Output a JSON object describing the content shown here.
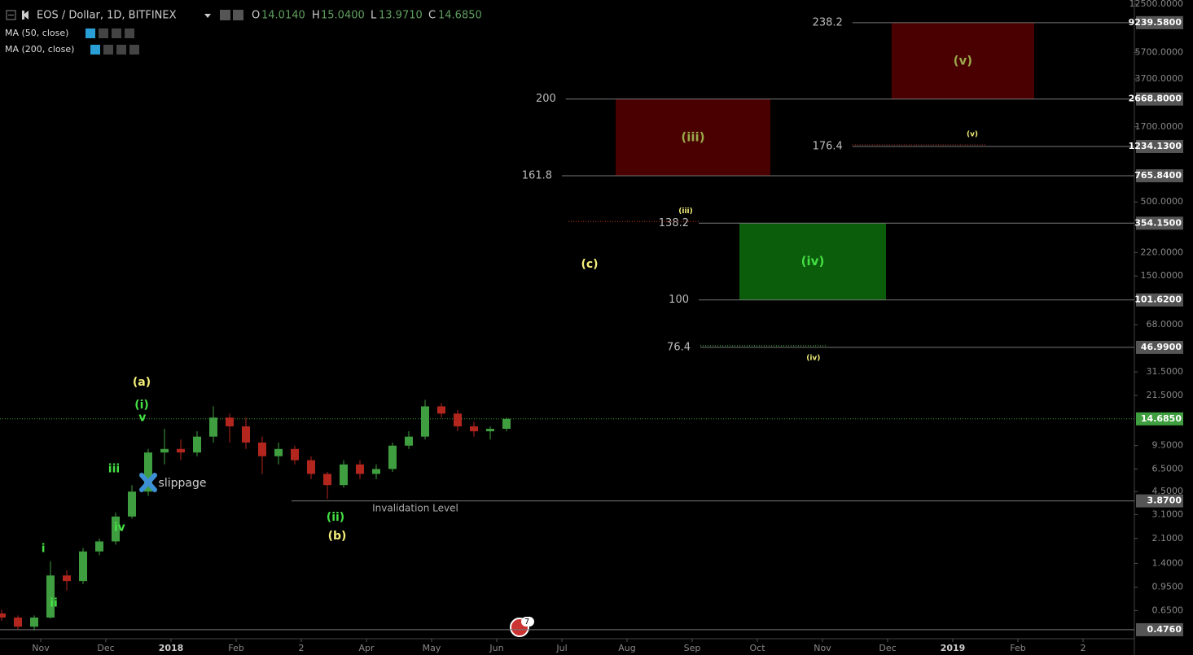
{
  "header": {
    "symbol": "EOS / Dollar, 1D, BITFINEX",
    "ohlc": [
      {
        "key": "O",
        "value": {
          "value": 14.014,
          "label": "14.0140"
        }
      },
      {
        "key": "H",
        "value": {
          "value": 15.04,
          "label": "15.0400"
        }
      },
      {
        "key": "L",
        "value": {
          "value": 13.971,
          "label": "13.9710"
        }
      },
      {
        "key": "C",
        "value": {
          "value": 14.685,
          "label": "14.6850"
        }
      }
    ],
    "indicators": [
      "MA (50, close)",
      "MA (200, close)"
    ]
  },
  "badge": 7,
  "chart_data": {
    "type": "candlestick",
    "log_scale": true,
    "up_color": "#3f9e3f",
    "down_color": "#b3261e",
    "x": [
      -0.6,
      -0.35,
      -0.1,
      0.15,
      0.4,
      0.65,
      0.9,
      1.15,
      1.4,
      1.65,
      1.9,
      2.15,
      2.4,
      2.65,
      2.9,
      3.15,
      3.4,
      3.65,
      3.9,
      4.15,
      4.4,
      4.65,
      4.9,
      5.15,
      5.4,
      5.65,
      5.9,
      6.15,
      6.4,
      6.65,
      6.9,
      7.15
    ],
    "open": [
      0.62,
      0.58,
      0.5,
      0.58,
      1.15,
      1.05,
      1.7,
      2.0,
      3.0,
      4.5,
      8.5,
      9.0,
      8.5,
      11,
      15,
      13,
      10,
      8,
      9,
      7.5,
      6,
      5,
      7,
      6,
      6.5,
      9.5,
      11,
      18,
      16,
      13,
      12,
      12.5
    ],
    "high": [
      0.66,
      0.6,
      0.6,
      1.45,
      1.25,
      1.8,
      2.1,
      3.2,
      5.0,
      9.0,
      12.5,
      10.5,
      12,
      18,
      16,
      15,
      11,
      10,
      9.5,
      8,
      6.2,
      7.5,
      7.5,
      7,
      10,
      12,
      20,
      19,
      17,
      14,
      13,
      15
    ],
    "low": [
      0.55,
      0.48,
      0.47,
      0.57,
      0.9,
      1.0,
      1.6,
      1.9,
      2.9,
      4.2,
      7.0,
      7.5,
      8,
      10,
      10,
      9,
      6,
      7,
      7,
      5.5,
      4,
      4.8,
      5.5,
      5.5,
      6.2,
      9,
      10.5,
      15,
      12,
      11,
      10.5,
      12
    ],
    "close": [
      0.58,
      0.5,
      0.58,
      1.15,
      1.05,
      1.7,
      2.0,
      3.0,
      4.5,
      8.5,
      9.0,
      8.5,
      11,
      15,
      13,
      10,
      8,
      9,
      7.5,
      6,
      5,
      7,
      6,
      6.5,
      9.5,
      11,
      18,
      16,
      13,
      12,
      12.5,
      14.685
    ],
    "xlim": [
      -0.625,
      16.7875
    ],
    "xticks": [
      {
        "value": 0,
        "label": "Nov"
      },
      {
        "value": 1,
        "label": "Dec"
      },
      {
        "value": 2,
        "label": "2018"
      },
      {
        "value": 3,
        "label": "Feb"
      },
      {
        "value": 4,
        "label": "2"
      },
      {
        "value": 5,
        "label": "Apr"
      },
      {
        "value": 6,
        "label": "May"
      },
      {
        "value": 7,
        "label": "Jun"
      },
      {
        "value": 8,
        "label": "Jul"
      },
      {
        "value": 9,
        "label": "Aug"
      },
      {
        "value": 10,
        "label": "Sep"
      },
      {
        "value": 11,
        "label": "Oct"
      },
      {
        "value": 12,
        "label": "Nov"
      },
      {
        "value": 13,
        "label": "Dec"
      },
      {
        "value": 14,
        "label": "2019"
      },
      {
        "value": 15,
        "label": "Feb"
      },
      {
        "value": 16,
        "label": "2"
      }
    ],
    "ylim": [
      0.411,
      13360
    ],
    "yticks": [
      {
        "value": 12500,
        "label": "12500.0000"
      },
      {
        "value": 5700,
        "label": "5700.0000"
      },
      {
        "value": 3700,
        "label": "3700.0000"
      },
      {
        "value": 1700,
        "label": "1700.0000"
      },
      {
        "value": 500,
        "label": "500.0000"
      },
      {
        "value": 220,
        "label": "220.0000"
      },
      {
        "value": 150,
        "label": "150.0000"
      },
      {
        "value": 68,
        "label": "68.0000"
      },
      {
        "value": 31.5,
        "label": "31.5000"
      },
      {
        "value": 21.5,
        "label": "21.5000"
      },
      {
        "value": 9.5,
        "label": "9.5000"
      },
      {
        "value": 6.5,
        "label": "6.5000"
      },
      {
        "value": 4.5,
        "label": "4.5000"
      },
      {
        "value": 3.1,
        "label": "3.1000"
      },
      {
        "value": 2.1,
        "label": "2.1000"
      },
      {
        "value": 1.4,
        "label": "1.4000"
      },
      {
        "value": 0.95,
        "label": "0.9500"
      },
      {
        "value": 0.65,
        "label": "0.6500"
      }
    ],
    "last_price": {
      "value": 14.685,
      "label": "14.6850"
    },
    "levels": [
      {
        "value": 9239.58,
        "label": "9239.5800",
        "ratio": 238.2,
        "from": 12.46
      },
      {
        "value": 2668.8,
        "label": "2668.8000",
        "ratio": 200,
        "from": 8.06
      },
      {
        "value": 1234.13,
        "label": "1234.1300",
        "ratio": 176.4,
        "from": 12.46
      },
      {
        "value": 765.84,
        "label": "765.8400",
        "ratio": 161.8,
        "from": 8.0
      },
      {
        "value": 354.15,
        "label": "354.1500",
        "ratio": 138.2,
        "from": 10.1
      },
      {
        "value": 101.62,
        "label": "101.6200",
        "ratio": 100,
        "from": 10.1
      },
      {
        "value": 46.99,
        "label": "46.9900",
        "ratio": 76.4,
        "from": 10.125
      },
      {
        "value": 3.87,
        "label": "3.8700",
        "ratio": null,
        "from": 3.85
      },
      {
        "value": 0.476,
        "label": "0.4760",
        "ratio": null,
        "from": -0.625
      }
    ],
    "boxes": [
      {
        "label": "(iii)",
        "low": 765.84,
        "high": 2668.8,
        "x": [
          8.825,
          11.2
        ],
        "color": "#4a0000",
        "text_color": "#9aa84a"
      },
      {
        "label": "(v)",
        "low": 2668.8,
        "high": 9239.58,
        "x": [
          13.06,
          15.25
        ],
        "color": "#4a0000",
        "text_color": "#9aa84a"
      },
      {
        "label": "(iv)",
        "low": 101.62,
        "high": 354.15,
        "x": [
          10.725,
          12.975
        ],
        "color": "#0b5c0b",
        "text_color": "#44e044"
      }
    ],
    "projections": [
      {
        "label": "(iii)",
        "value": 354.15,
        "x": [
          8.1,
          10.1
        ],
        "color": "#c0392b"
      },
      {
        "label": "(v)",
        "value": 1234.13,
        "x": [
          12.46,
          14.5
        ],
        "color": "#c0392b"
      },
      {
        "label": "(iv)",
        "value": 46.99,
        "x": [
          10.125,
          12.06
        ],
        "color": "#3fbf3f"
      }
    ],
    "annotations": [
      {
        "text": "(a)",
        "x": 1.55,
        "y": 26.6,
        "color": "#f3ee7a"
      },
      {
        "text": "(i)",
        "x": 1.55,
        "y": 18.3,
        "color": "#44e044"
      },
      {
        "text": "v",
        "x": 1.56,
        "y": 14.9,
        "color": "#44e044"
      },
      {
        "text": "iii",
        "x": 1.125,
        "y": 6.5,
        "color": "#44e044"
      },
      {
        "text": "iv",
        "x": 1.21,
        "y": 2.5,
        "color": "#44e044"
      },
      {
        "text": "i",
        "x": 0.04,
        "y": 1.77,
        "color": "#44e044"
      },
      {
        "text": "ii",
        "x": 0.2,
        "y": 0.73,
        "color": "#44e044"
      },
      {
        "text": "(ii)",
        "x": 4.525,
        "y": 2.95,
        "color": "#44e044"
      },
      {
        "text": "(b)",
        "x": 4.55,
        "y": 2.18,
        "color": "#f3ee7a"
      },
      {
        "text": "(c)",
        "x": 8.425,
        "y": 181,
        "color": "#f3ee7a"
      }
    ],
    "slippage": {
      "text": "slippage",
      "x": 2.175,
      "y": 5.15
    },
    "invalidation": {
      "text": "Invalidation Level",
      "x": 5.75,
      "y": 3.42
    }
  }
}
